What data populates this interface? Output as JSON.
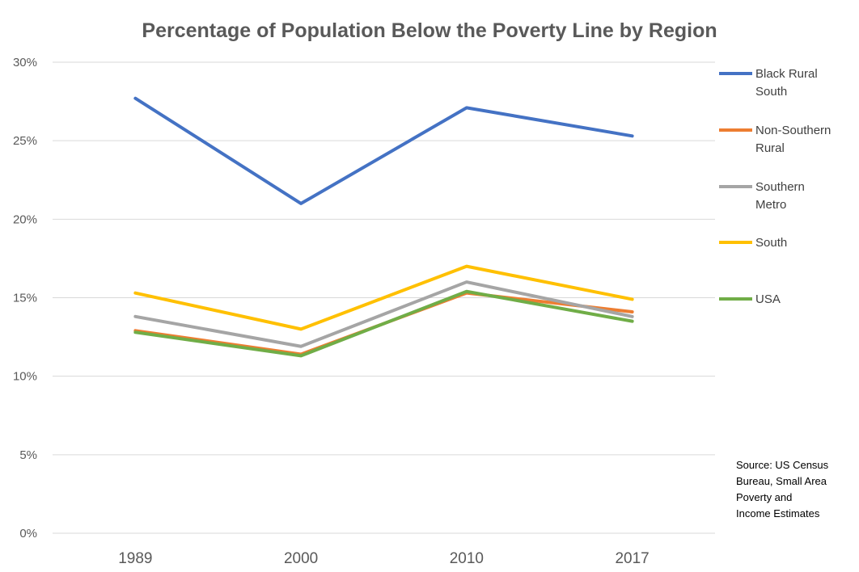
{
  "chart_data": {
    "type": "line",
    "title": "Percentage of Population Below the Poverty Line by Region",
    "xlabel": "",
    "ylabel": "",
    "categories": [
      "1989",
      "2000",
      "2010",
      "2017"
    ],
    "ylim": [
      0,
      30
    ],
    "y_ticks": [
      {
        "value": 0,
        "label": "0%"
      },
      {
        "value": 5,
        "label": "5%"
      },
      {
        "value": 10,
        "label": "10%"
      },
      {
        "value": 15,
        "label": "15%"
      },
      {
        "value": 20,
        "label": "20%"
      },
      {
        "value": 25,
        "label": "25%"
      },
      {
        "value": 30,
        "label": "30%"
      }
    ],
    "grid": true,
    "legend_position": "right",
    "series": [
      {
        "name": "Black Rural South",
        "legend_lines": [
          "Black Rural",
          "South"
        ],
        "color": "#4472c4",
        "values": [
          27.7,
          21.0,
          27.1,
          25.3
        ]
      },
      {
        "name": "Non-Southern Rural",
        "legend_lines": [
          "Non-Southern",
          "Rural"
        ],
        "color": "#ed7d31",
        "values": [
          12.9,
          11.4,
          15.3,
          14.1
        ]
      },
      {
        "name": "Southern Metro",
        "legend_lines": [
          "Southern",
          "Metro"
        ],
        "color": "#a5a5a5",
        "values": [
          13.8,
          11.9,
          16.0,
          13.8
        ]
      },
      {
        "name": "South",
        "legend_lines": [
          "South"
        ],
        "color": "#ffc000",
        "values": [
          15.3,
          13.0,
          17.0,
          14.9
        ]
      },
      {
        "name": "USA",
        "legend_lines": [
          "USA"
        ],
        "color": "#70ad47",
        "values": [
          12.8,
          11.3,
          15.4,
          13.5
        ]
      }
    ],
    "source_lines": [
      "Source: US Census",
      "Bureau, Small Area",
      "Poverty and",
      "Income Estimates"
    ]
  }
}
